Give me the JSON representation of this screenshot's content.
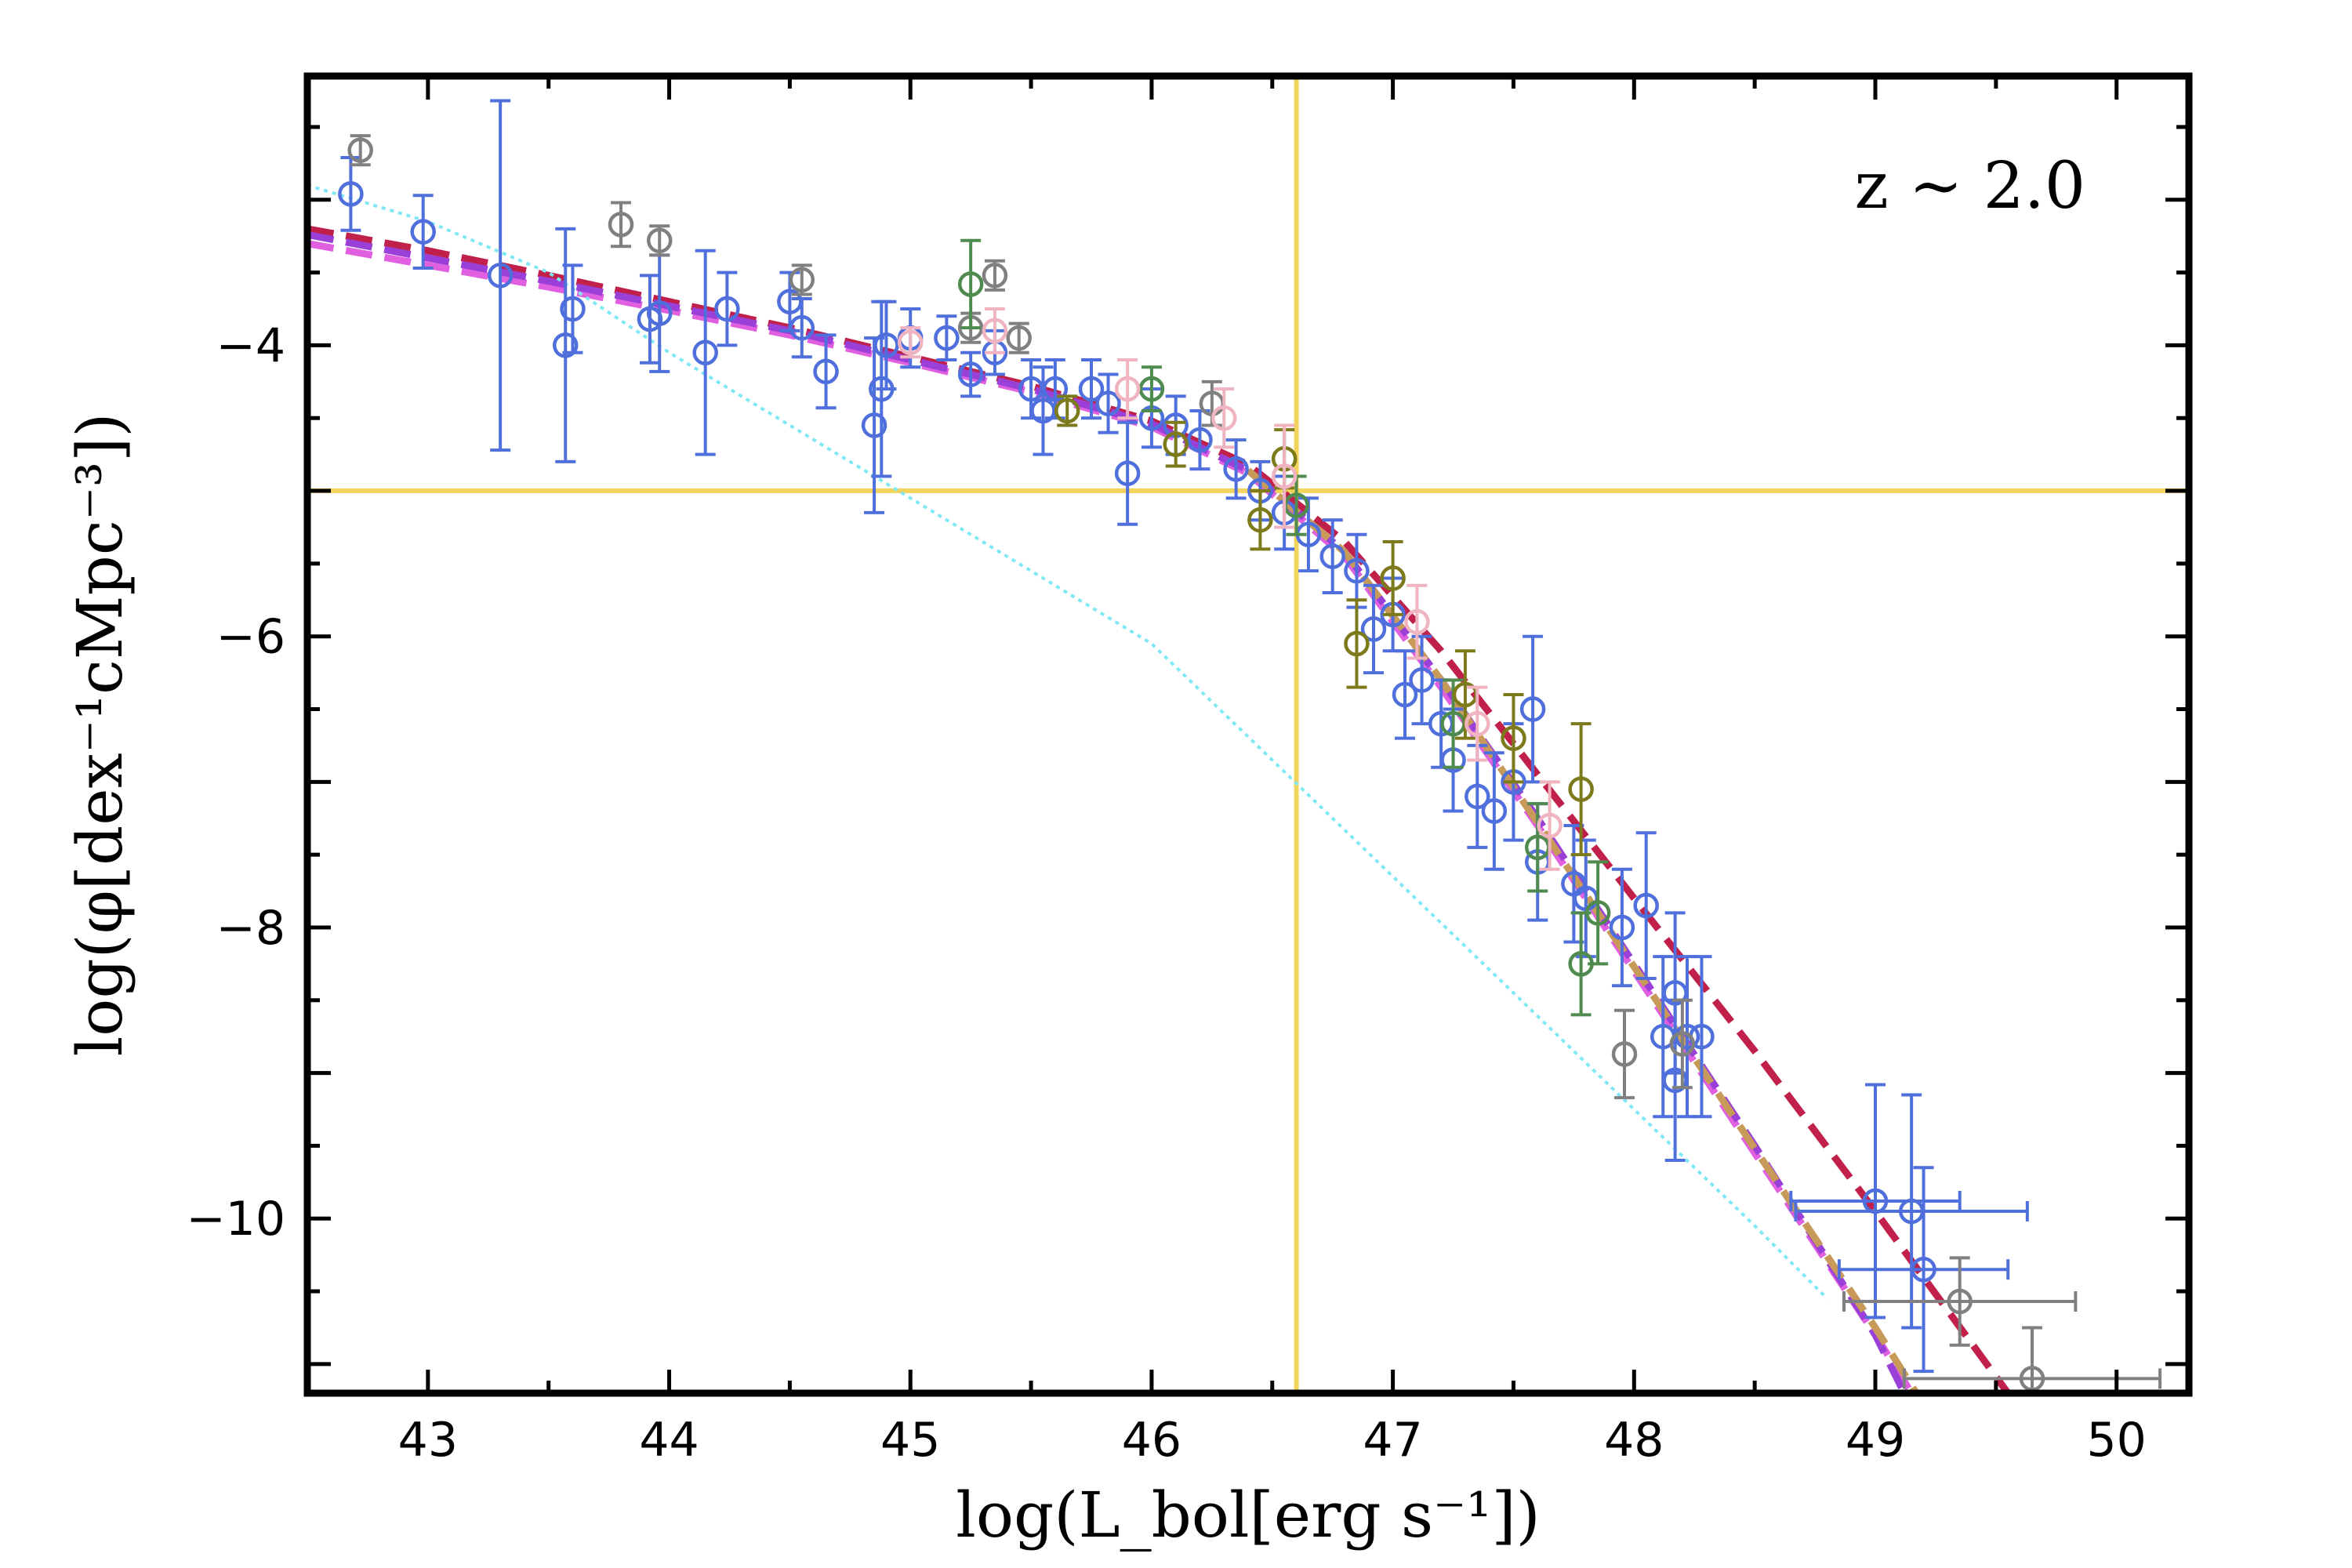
{
  "chart_data": {
    "type": "scatter",
    "title": "",
    "annotation": "z ∼ 2.0",
    "xlabel": "log(L_bol[erg s⁻¹])",
    "ylabel": "log(φ[dex⁻¹cMpc⁻³])",
    "xlim": [
      42.5,
      50.3
    ],
    "ylim": [
      -11.2,
      -2.15
    ],
    "x_ticks": [
      43,
      44,
      45,
      46,
      47,
      48,
      49,
      50
    ],
    "x_tick_labels": [
      "43",
      "44",
      "45",
      "46",
      "47",
      "48",
      "49",
      "50"
    ],
    "y_ticks": [
      -4,
      -6,
      -8,
      -10
    ],
    "y_tick_labels": [
      "−4",
      "−6",
      "−8",
      "−10"
    ],
    "grid": false,
    "reference_lines": {
      "vertical_x": 46.6,
      "horizontal_y": -5.0,
      "color": "#f2d45c"
    },
    "colors": {
      "blue": "#4f6fdc",
      "gray": "#808080",
      "green": "#4f8a4f",
      "olive": "#7d7a1c",
      "pink": "#f0b4c0",
      "crimson": "#c0204a",
      "magenta": "#e060e0",
      "purple": "#9a40d8",
      "tan": "#c89a5a",
      "cyan": "#7fe8f5"
    },
    "model_curves": [
      {
        "style": "dashed",
        "color": "crimson",
        "x": [
          42.5,
          43.0,
          43.5,
          44.0,
          44.5,
          45.0,
          45.5,
          46.0,
          46.4,
          46.8,
          47.2,
          47.6,
          48.0,
          48.5,
          49.0,
          49.55
        ],
        "y": [
          -3.2,
          -3.35,
          -3.52,
          -3.7,
          -3.88,
          -4.08,
          -4.28,
          -4.52,
          -4.82,
          -5.35,
          -6.1,
          -6.95,
          -7.8,
          -8.85,
          -9.95,
          -11.2
        ]
      },
      {
        "style": "dashed",
        "color": "magenta",
        "x": [
          42.5,
          43.0,
          43.5,
          44.0,
          44.5,
          45.0,
          45.5,
          46.0,
          46.4,
          46.8,
          47.2,
          47.6,
          48.0,
          48.5,
          49.0,
          49.15
        ],
        "y": [
          -3.3,
          -3.45,
          -3.6,
          -3.76,
          -3.93,
          -4.12,
          -4.32,
          -4.56,
          -4.88,
          -5.45,
          -6.35,
          -7.3,
          -8.3,
          -9.55,
          -10.8,
          -11.2
        ]
      },
      {
        "style": "dashed",
        "color": "purple",
        "x": [
          42.5,
          43.0,
          43.5,
          44.0,
          44.5,
          45.0,
          45.5,
          46.0,
          46.4,
          46.8,
          47.2,
          47.6,
          48.0,
          48.5,
          49.0,
          49.12
        ],
        "y": [
          -3.24,
          -3.4,
          -3.56,
          -3.73,
          -3.9,
          -4.1,
          -4.3,
          -4.54,
          -4.86,
          -5.42,
          -6.3,
          -7.25,
          -8.25,
          -9.5,
          -10.8,
          -11.2
        ]
      },
      {
        "style": "dashed",
        "color": "tan",
        "x": [
          46.4,
          46.8,
          47.2,
          47.6,
          48.0,
          48.5,
          49.0,
          49.17
        ],
        "y": [
          -4.86,
          -5.42,
          -6.3,
          -7.28,
          -8.27,
          -9.52,
          -10.75,
          -11.2
        ]
      },
      {
        "style": "dotted",
        "color": "cyan",
        "x": [
          42.5,
          43.0,
          43.5,
          44.0,
          44.5,
          45.0,
          45.5,
          46.0,
          46.5,
          47.0,
          47.5,
          48.0,
          48.5,
          48.8
        ],
        "y": [
          -2.9,
          -3.15,
          -3.5,
          -4.05,
          -4.55,
          -5.05,
          -5.55,
          -6.05,
          -6.85,
          -7.65,
          -8.45,
          -9.25,
          -10.05,
          -10.55
        ]
      }
    ],
    "series": [
      {
        "color": "blue",
        "points": [
          [
            42.68,
            -2.96,
            0.25,
            0.0
          ],
          [
            42.98,
            -3.22,
            0.25,
            0.0
          ],
          [
            43.3,
            -3.52,
            1.2,
            0.0
          ],
          [
            43.57,
            -4.0,
            0.8,
            0.0
          ],
          [
            43.6,
            -3.75,
            0.3,
            0.0
          ],
          [
            43.92,
            -3.82,
            0.3,
            0.0
          ],
          [
            43.96,
            -3.78,
            0.4,
            0.0
          ],
          [
            44.15,
            -4.05,
            0.7,
            0.0
          ],
          [
            44.24,
            -3.75,
            0.25,
            0.0
          ],
          [
            44.5,
            -3.7,
            0.2,
            0.0
          ],
          [
            44.55,
            -3.88,
            0.2,
            0.0
          ],
          [
            44.65,
            -4.18,
            0.25,
            0.0
          ],
          [
            44.85,
            -4.55,
            0.6,
            0.0
          ],
          [
            44.88,
            -4.3,
            0.6,
            0.0
          ],
          [
            44.9,
            -4.0,
            0.3,
            0.0
          ],
          [
            45.0,
            -3.95,
            0.2,
            0.0
          ],
          [
            45.15,
            -3.95,
            0.15,
            0.0
          ],
          [
            45.25,
            -4.2,
            0.15,
            0.0
          ],
          [
            45.35,
            -4.05,
            0.15,
            0.0
          ],
          [
            45.5,
            -4.3,
            0.2,
            0.0
          ],
          [
            45.55,
            -4.45,
            0.3,
            0.0
          ],
          [
            45.6,
            -4.3,
            0.2,
            0.0
          ],
          [
            45.75,
            -4.3,
            0.2,
            0.0
          ],
          [
            45.82,
            -4.4,
            0.2,
            0.0
          ],
          [
            45.9,
            -4.88,
            0.35,
            0.0
          ],
          [
            46.0,
            -4.5,
            0.2,
            0.0
          ],
          [
            46.1,
            -4.55,
            0.2,
            0.0
          ],
          [
            46.2,
            -4.65,
            0.2,
            0.0
          ],
          [
            46.35,
            -4.85,
            0.2,
            0.0
          ],
          [
            46.45,
            -5.0,
            0.2,
            0.0
          ],
          [
            46.55,
            -5.15,
            0.25,
            0.0
          ],
          [
            46.65,
            -5.3,
            0.25,
            0.0
          ],
          [
            46.75,
            -5.45,
            0.25,
            0.0
          ],
          [
            46.85,
            -5.55,
            0.25,
            0.0
          ],
          [
            46.92,
            -5.95,
            0.3,
            0.0
          ],
          [
            47.0,
            -5.85,
            0.25,
            0.0
          ],
          [
            47.05,
            -6.4,
            0.3,
            0.0
          ],
          [
            47.12,
            -6.3,
            0.3,
            0.0
          ],
          [
            47.2,
            -6.6,
            0.3,
            0.0
          ],
          [
            47.25,
            -6.85,
            0.35,
            0.0
          ],
          [
            47.35,
            -7.1,
            0.35,
            0.0
          ],
          [
            47.42,
            -7.2,
            0.4,
            0.0
          ],
          [
            47.5,
            -7.0,
            0.4,
            0.0
          ],
          [
            47.58,
            -6.5,
            0.5,
            0.0
          ],
          [
            47.6,
            -7.55,
            0.4,
            0.0
          ],
          [
            47.75,
            -7.7,
            0.4,
            0.0
          ],
          [
            47.8,
            -7.8,
            0.4,
            0.0
          ],
          [
            47.95,
            -8.0,
            0.4,
            0.0
          ],
          [
            48.05,
            -7.85,
            0.5,
            0.0
          ],
          [
            48.12,
            -8.75,
            0.55,
            0.0
          ],
          [
            48.17,
            -8.45,
            0.55,
            0.0
          ],
          [
            48.17,
            -9.05,
            0.55,
            0.0
          ],
          [
            48.22,
            -8.75,
            0.55,
            0.0
          ],
          [
            48.28,
            -8.75,
            0.55,
            0.0
          ],
          [
            49.0,
            -9.88,
            0.8,
            0.35
          ],
          [
            49.15,
            -9.95,
            0.8,
            0.48
          ],
          [
            49.2,
            -10.35,
            0.7,
            0.35
          ]
        ]
      },
      {
        "color": "gray",
        "points": [
          [
            42.72,
            -2.66,
            0.1,
            0.0
          ],
          [
            43.8,
            -3.17,
            0.15,
            0.0
          ],
          [
            43.96,
            -3.28,
            0.1,
            0.0
          ],
          [
            44.55,
            -3.55,
            0.1,
            0.0
          ],
          [
            45.25,
            -3.88,
            0.1,
            0.0
          ],
          [
            45.35,
            -3.52,
            0.1,
            0.0
          ],
          [
            45.45,
            -3.95,
            0.1,
            0.0
          ],
          [
            46.25,
            -4.4,
            0.15,
            0.0
          ],
          [
            47.96,
            -8.87,
            0.3,
            0.0
          ],
          [
            48.2,
            -8.8,
            0.3,
            0.0
          ],
          [
            49.35,
            -10.57,
            0.3,
            0.48
          ],
          [
            49.65,
            -11.1,
            0.35,
            0.53
          ]
        ]
      },
      {
        "color": "green",
        "points": [
          [
            45.25,
            -3.58,
            0.3,
            0.0
          ],
          [
            46.0,
            -4.3,
            0.15,
            0.0
          ],
          [
            46.6,
            -5.1,
            0.2,
            0.0
          ],
          [
            47.25,
            -6.6,
            0.3,
            0.0
          ],
          [
            47.6,
            -7.45,
            0.3,
            0.0
          ],
          [
            47.78,
            -8.25,
            0.35,
            0.0
          ],
          [
            47.85,
            -7.9,
            0.35,
            0.0
          ]
        ]
      },
      {
        "color": "olive",
        "points": [
          [
            45.65,
            -4.45,
            0.1,
            0.0
          ],
          [
            46.1,
            -4.68,
            0.15,
            0.0
          ],
          [
            46.45,
            -5.2,
            0.2,
            0.0
          ],
          [
            46.55,
            -4.78,
            0.2,
            0.0
          ],
          [
            46.85,
            -6.05,
            0.3,
            0.0
          ],
          [
            47.0,
            -5.6,
            0.25,
            0.0
          ],
          [
            47.3,
            -6.4,
            0.3,
            0.0
          ],
          [
            47.5,
            -6.7,
            0.3,
            0.0
          ],
          [
            47.78,
            -7.05,
            0.45,
            0.0
          ]
        ]
      },
      {
        "color": "pink",
        "points": [
          [
            45.0,
            -3.98,
            0.1,
            0.0
          ],
          [
            45.35,
            -3.9,
            0.15,
            0.0
          ],
          [
            45.9,
            -4.3,
            0.2,
            0.0
          ],
          [
            46.3,
            -4.5,
            0.2,
            0.0
          ],
          [
            46.55,
            -4.9,
            0.35,
            0.0
          ],
          [
            47.1,
            -5.9,
            0.25,
            0.0
          ],
          [
            47.35,
            -6.6,
            0.25,
            0.0
          ],
          [
            47.65,
            -7.3,
            0.3,
            0.0
          ]
        ]
      }
    ]
  }
}
